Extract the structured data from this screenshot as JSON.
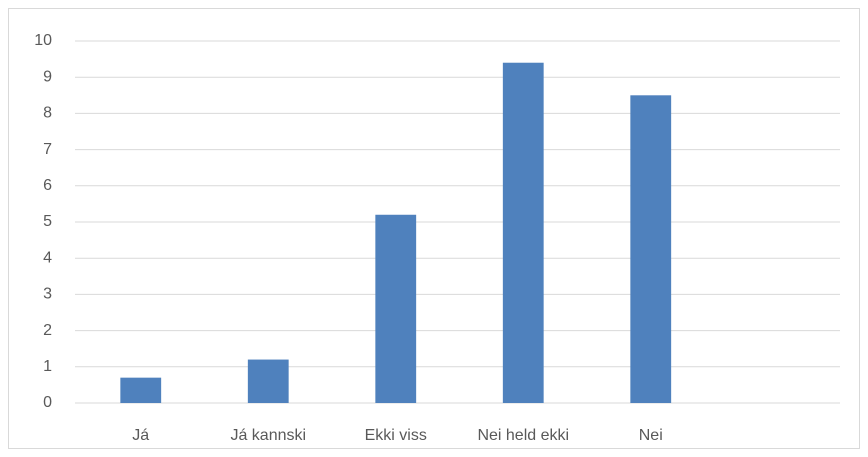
{
  "chart_data": {
    "type": "bar",
    "categories": [
      "Já",
      "Já kannski",
      "Ekki viss",
      "Nei held ekki",
      "Nei",
      null
    ],
    "values": [
      0.7,
      1.2,
      5.2,
      9.4,
      8.5,
      null
    ],
    "color": "#4f81bd",
    "ylim": [
      0,
      10
    ],
    "yticks": [
      0,
      1,
      2,
      3,
      4,
      5,
      6,
      7,
      8,
      9,
      10
    ],
    "grid": true
  }
}
